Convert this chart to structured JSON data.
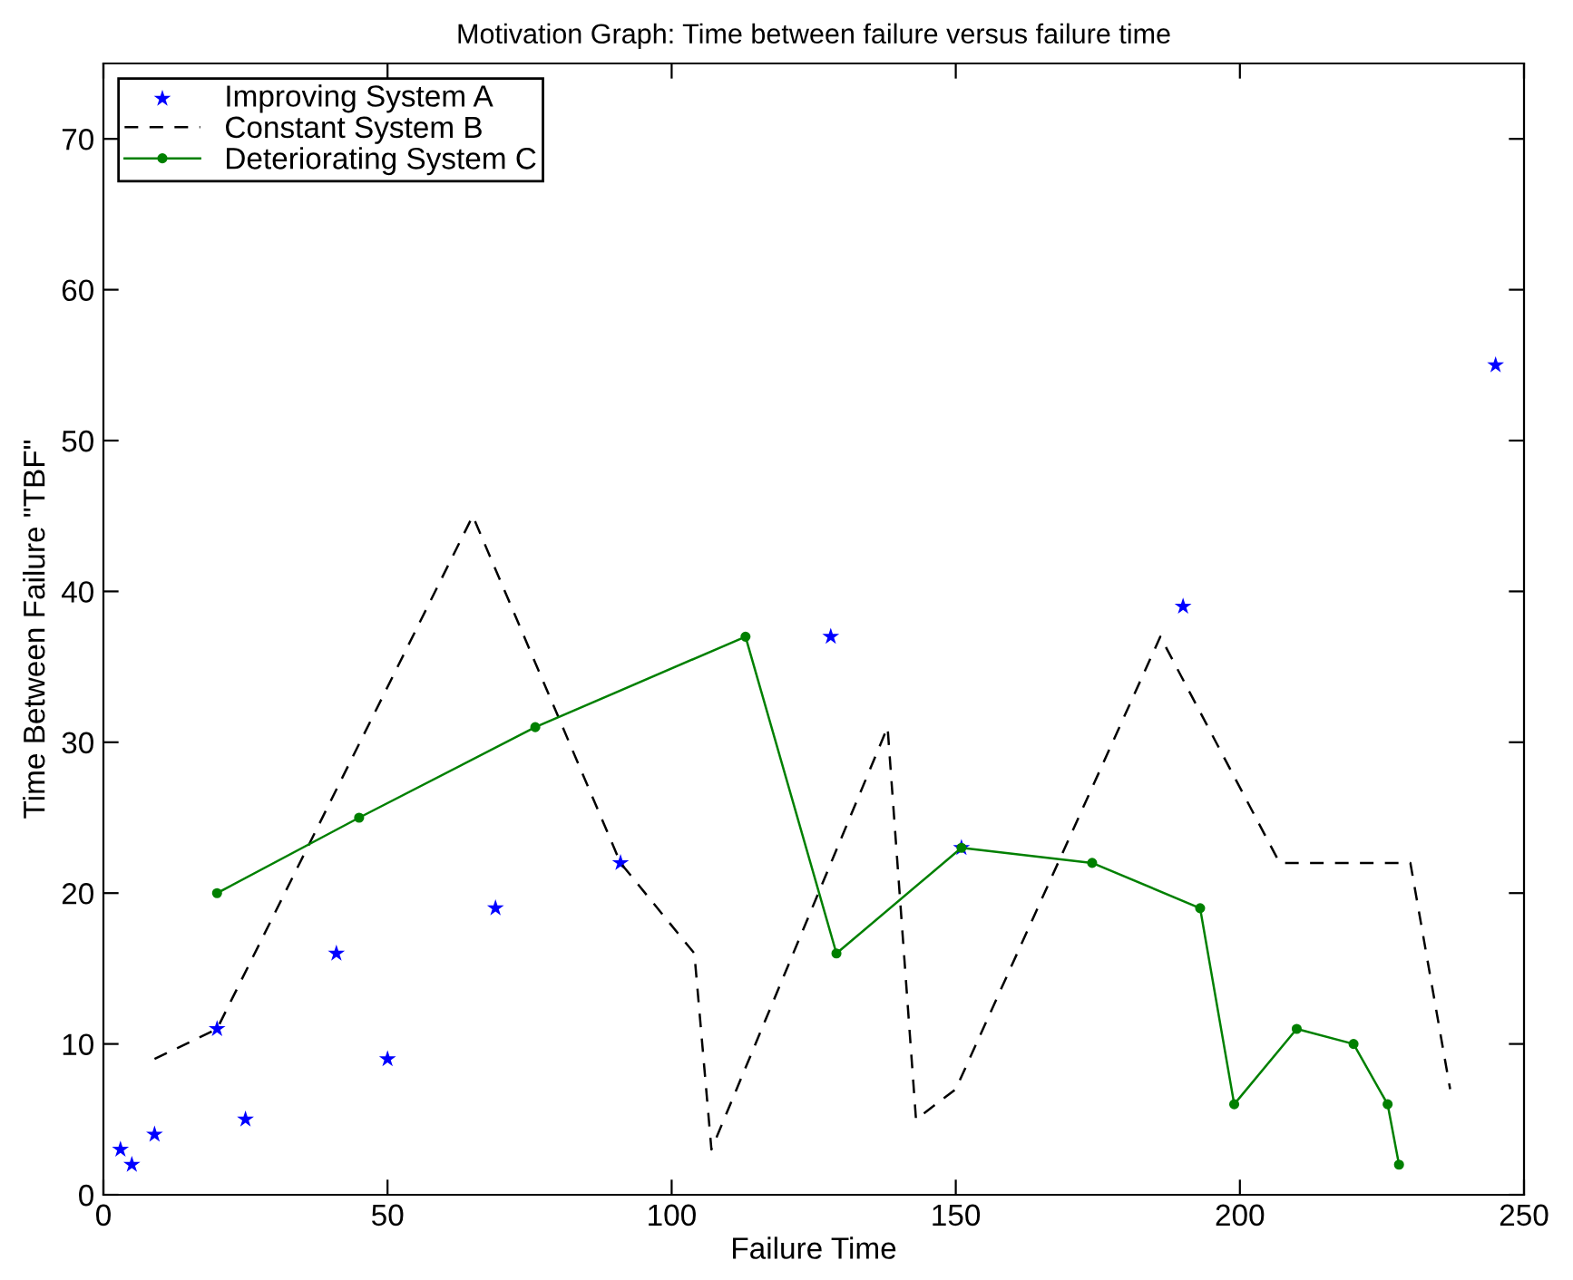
{
  "chart_data": {
    "type": "line",
    "title": "Motivation Graph: Time between failure versus failure time",
    "xlabel": "Failure Time",
    "ylabel": "Time Between Failure \"TBF\"",
    "xlim": [
      0,
      250
    ],
    "xticks": [
      0,
      50,
      100,
      150,
      200,
      250
    ],
    "ylim": [
      0,
      75
    ],
    "yticks": [
      0,
      10,
      20,
      30,
      40,
      50,
      60,
      70
    ],
    "grid": false,
    "legend": "top left",
    "series": [
      {
        "name": "Improving System A",
        "type": "scatter",
        "color": "#0000ff",
        "marker": "star",
        "x": [
          3,
          5,
          9,
          20,
          25,
          41,
          50,
          69,
          91,
          128,
          151,
          190,
          245
        ],
        "values": [
          3,
          2,
          4,
          11,
          5,
          16,
          9,
          19,
          22,
          37,
          23,
          39,
          55
        ]
      },
      {
        "name": "Constant System B",
        "color": "#000000",
        "line_style": "dashed",
        "marker": "none",
        "x": [
          9,
          20,
          65,
          91,
          104,
          107,
          138,
          143,
          150,
          186,
          207,
          230,
          237
        ],
        "values": [
          9,
          11,
          45,
          22,
          16,
          3,
          31,
          5,
          7,
          37,
          22,
          22,
          7
        ]
      },
      {
        "name": "Deteriorating System C",
        "color": "#008000",
        "line_style": "solid",
        "marker": "circle",
        "x": [
          20,
          45,
          76,
          113,
          129,
          151,
          174,
          193,
          199,
          210,
          220,
          226,
          228
        ],
        "values": [
          20,
          25,
          31,
          37,
          16,
          23,
          22,
          19,
          6,
          11,
          10,
          6,
          2
        ]
      }
    ]
  }
}
